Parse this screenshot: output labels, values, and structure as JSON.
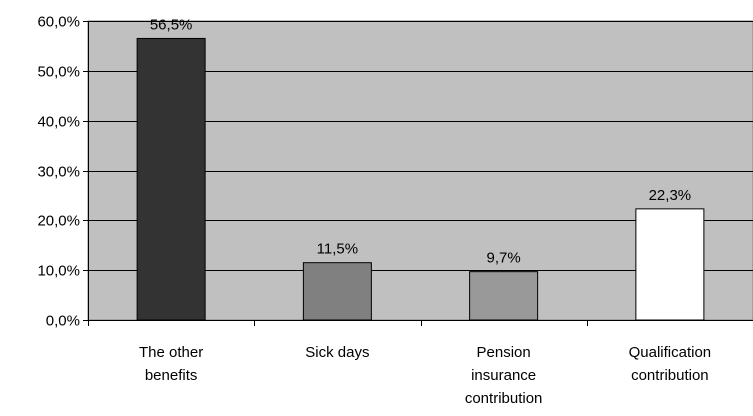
{
  "chart_data": {
    "type": "bar",
    "title": "",
    "xlabel": "",
    "ylabel": "",
    "categories": [
      [
        "The other",
        "benefits"
      ],
      [
        "Sick days"
      ],
      [
        "Pension",
        "insurance",
        "contribution"
      ],
      [
        "Qualification",
        "contribution"
      ]
    ],
    "values": [
      56.5,
      11.5,
      9.7,
      22.3
    ],
    "data_labels": [
      "56,5%",
      "11,5%",
      "9,7%",
      "22,3%"
    ],
    "bar_colors": [
      "#333333",
      "#808080",
      "#999999",
      "#ffffff"
    ],
    "ylim": [
      0,
      60
    ],
    "yticks": [
      0,
      10,
      20,
      30,
      40,
      50,
      60
    ],
    "ytick_labels": [
      "0,0%",
      "10,0%",
      "20,0%",
      "30,0%",
      "40,0%",
      "50,0%",
      "60,0%"
    ],
    "plot_background": "#c0c0c0",
    "grid": true,
    "legend": "none"
  }
}
